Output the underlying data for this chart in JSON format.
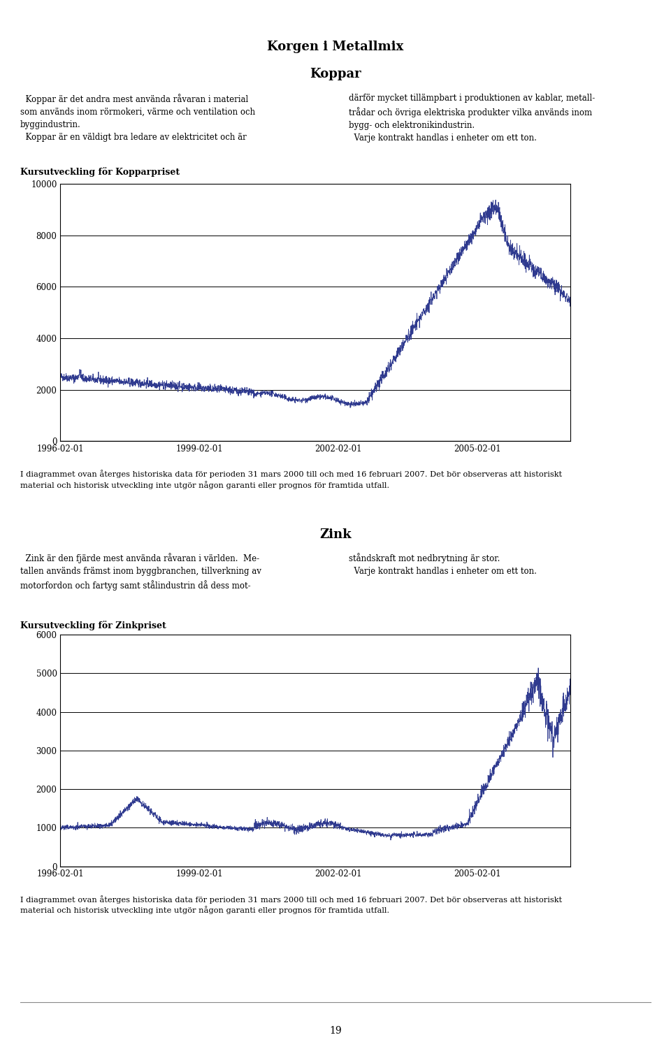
{
  "page_title": "Korgen i Metallmix",
  "section1_title": "Koppar",
  "chart1_label": "Kursutveckling för Kopparpriset",
  "chart1_yticks": [
    0,
    2000,
    4000,
    6000,
    8000,
    10000
  ],
  "chart1_xtick_labels": [
    "1996-02-01",
    "1999-02-01",
    "2002-02-01",
    "2005-02-01"
  ],
  "chart1_ylim": [
    0,
    10000
  ],
  "chart1_hlines": [
    2000,
    4000,
    6000,
    8000,
    10000
  ],
  "chart1_color": "#2F3A8F",
  "chart1_note": "I diagrammet ovan återges historiska data för perioden 31 mars 2000 till och med 16 februari 2007. Det bör observeras att historiskt material och historisk utveckling inte utgör någon garanti eller prognos för framtida utfall.",
  "section2_title": "Zink",
  "chart2_label": "Kursutveckling för Zinkpriset",
  "chart2_yticks": [
    0,
    1000,
    2000,
    3000,
    4000,
    5000,
    6000
  ],
  "chart2_xtick_labels": [
    "1996-02-01",
    "1999-02-01",
    "2002-02-01",
    "2005-02-01"
  ],
  "chart2_ylim": [
    0,
    6000
  ],
  "chart2_hlines": [
    1000,
    2000,
    3000,
    4000,
    5000,
    6000
  ],
  "chart2_color": "#2F3A8F",
  "chart2_note": "I diagrammet ovan återges historiska data för perioden 31 mars 2000 till och med 16 februari 2007. Det bör observeras att historiskt material och historisk utveckling inte utgör någon garanti eller prognos för framtida utfall.",
  "page_number": "19",
  "line_color": "#888888",
  "background_color": "#ffffff",
  "text_color": "#000000"
}
